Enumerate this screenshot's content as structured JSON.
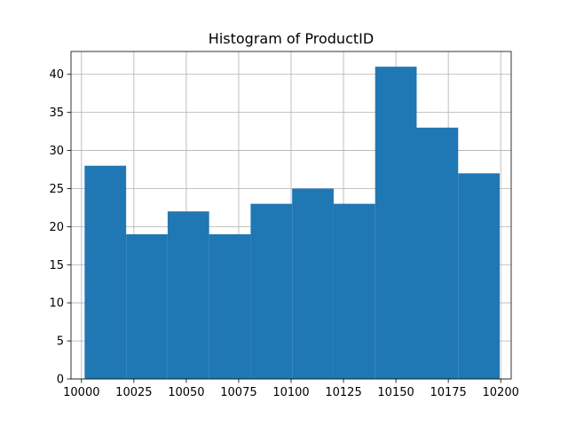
{
  "chart_data": {
    "type": "bar",
    "title": "Histogram of ProductID",
    "xlabel": "",
    "ylabel": "",
    "grid": true,
    "xlim": [
      9995,
      10205
    ],
    "ylim": [
      0,
      43
    ],
    "bin_edges": [
      10001.5,
      10021.3,
      10041.1,
      10060.9,
      10080.7,
      10100.5,
      10120.3,
      10140.1,
      10159.9,
      10179.7,
      10199.5
    ],
    "values": [
      28,
      19,
      22,
      19,
      23,
      25,
      23,
      41,
      33,
      27
    ],
    "xticks": [
      10000,
      10025,
      10050,
      10075,
      10100,
      10125,
      10150,
      10175,
      10200
    ],
    "yticks": [
      0,
      5,
      10,
      15,
      20,
      25,
      30,
      35,
      40
    ],
    "bar_color": "#1f77b4",
    "grid_color": "#b0b0b0"
  }
}
